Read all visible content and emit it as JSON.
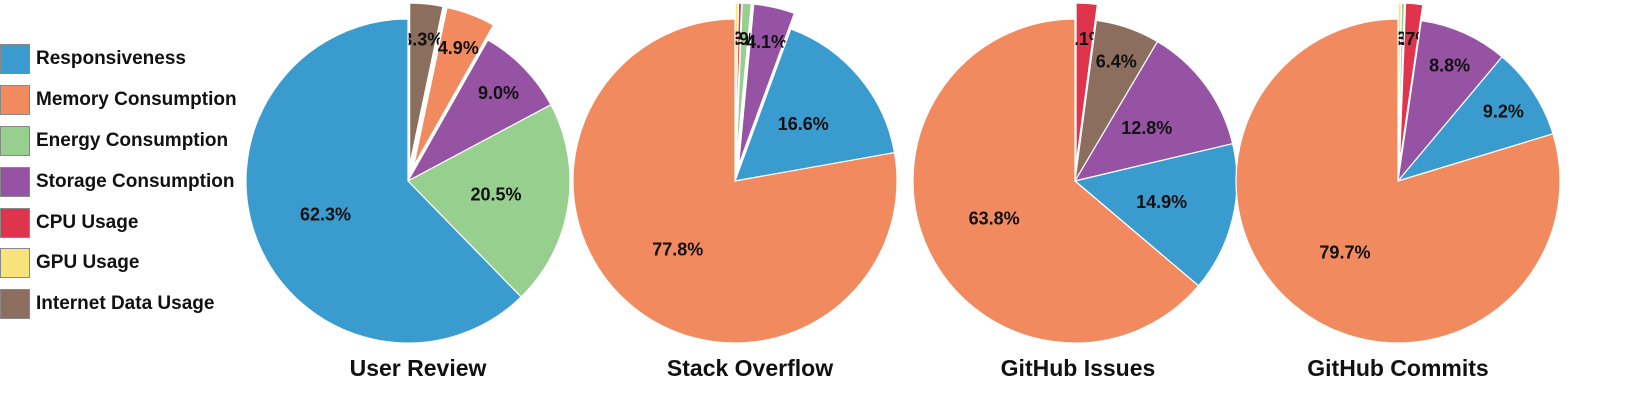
{
  "legend": {
    "items": [
      {
        "label": "Responsiveness",
        "color": "#3a9bce"
      },
      {
        "label": "Memory Consumption",
        "color": "#f28a5f"
      },
      {
        "label": "Energy Consumption",
        "color": "#97d08e"
      },
      {
        "label": "Storage Consumption",
        "color": "#9653a4"
      },
      {
        "label": "CPU Usage",
        "color": "#e0334c"
      },
      {
        "label": "GPU Usage",
        "color": "#f8e27a"
      },
      {
        "label": "Internet Data Usage",
        "color": "#8b6e5e"
      }
    ]
  },
  "chart_data": [
    {
      "type": "pie",
      "title": "User Review",
      "slices": [
        {
          "category": "Internet Data Usage",
          "value": 3.3,
          "label": "3.3%",
          "exploded": true
        },
        {
          "category": "Memory Consumption",
          "value": 4.9,
          "label": "4.9%",
          "exploded": true
        },
        {
          "category": "Storage Consumption",
          "value": 9.0,
          "label": "9.0%",
          "exploded": false
        },
        {
          "category": "Energy Consumption",
          "value": 20.5,
          "label": "20.5%",
          "exploded": false
        },
        {
          "category": "Responsiveness",
          "value": 62.3,
          "label": "62.3%",
          "exploded": false
        }
      ]
    },
    {
      "type": "pie",
      "title": "Stack Overflow",
      "slices": [
        {
          "category": "GPU Usage",
          "value": 0.3,
          "label": "0.3%",
          "exploded": true
        },
        {
          "category": "CPU Usage",
          "value": 0.3,
          "label": "0.3%",
          "exploded": true
        },
        {
          "category": "Energy Consumption",
          "value": 0.9,
          "label": "0.9%",
          "exploded": true
        },
        {
          "category": "Storage Consumption",
          "value": 4.1,
          "label": "4.1%",
          "exploded": true
        },
        {
          "category": "Responsiveness",
          "value": 16.6,
          "label": "16.6%",
          "exploded": false
        },
        {
          "category": "Memory Consumption",
          "value": 77.8,
          "label": "77.8%",
          "exploded": false
        }
      ]
    },
    {
      "type": "pie",
      "title": "GitHub Issues",
      "slices": [
        {
          "category": "CPU Usage",
          "value": 2.1,
          "label": "2.1%",
          "exploded": true
        },
        {
          "category": "Internet Data Usage",
          "value": 6.4,
          "label": "6.4%",
          "exploded": false
        },
        {
          "category": "Storage Consumption",
          "value": 12.8,
          "label": "12.8%",
          "exploded": false
        },
        {
          "category": "Responsiveness",
          "value": 14.9,
          "label": "14.9%",
          "exploded": false
        },
        {
          "category": "Memory Consumption",
          "value": 63.8,
          "label": "63.8%",
          "exploded": false
        }
      ]
    },
    {
      "type": "pie",
      "title": "GitHub Commits",
      "slices": [
        {
          "category": "GPU Usage",
          "value": 0.3,
          "label": "0.3%",
          "exploded": true
        },
        {
          "category": "Energy Consumption",
          "value": 0.3,
          "label": "0.3%",
          "exploded": true
        },
        {
          "category": "CPU Usage",
          "value": 1.7,
          "label": "1.7%",
          "exploded": true
        },
        {
          "category": "Storage Consumption",
          "value": 8.8,
          "label": "8.8%",
          "exploded": false
        },
        {
          "category": "Responsiveness",
          "value": 9.2,
          "label": "9.2%",
          "exploded": false
        },
        {
          "category": "Memory Consumption",
          "value": 79.7,
          "label": "79.7%",
          "exploded": false
        }
      ]
    }
  ]
}
